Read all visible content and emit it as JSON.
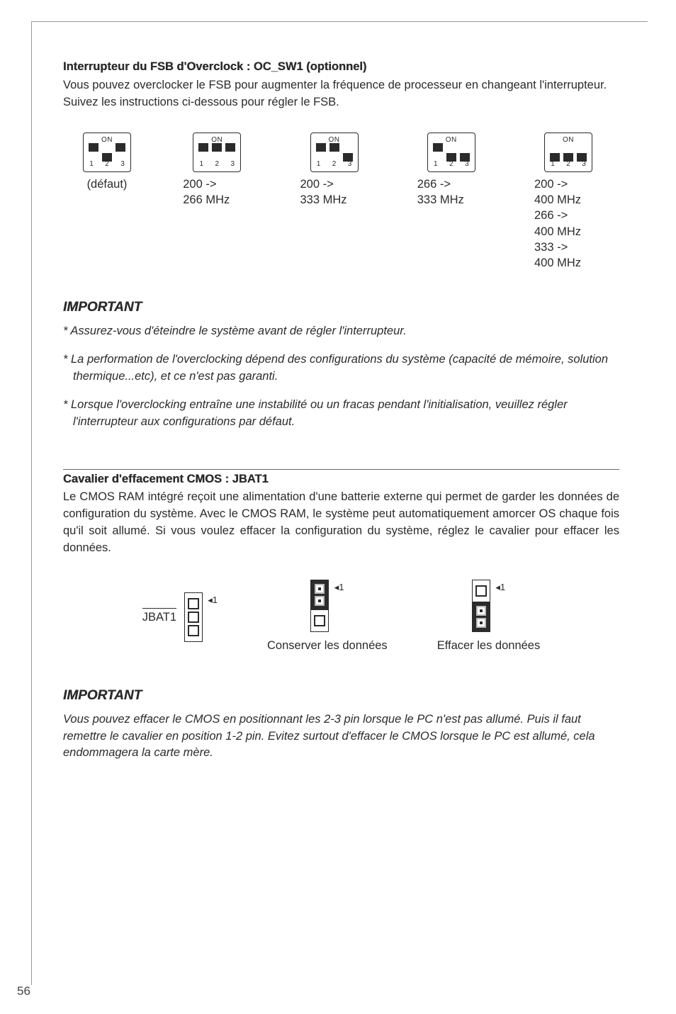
{
  "section1": {
    "heading": "Interrupteur du FSB d'Overclock : OC_SW1 (optionnel)",
    "intro": "Vous pouvez overclocker le FSB pour augmenter la fréquence de processeur en changeant l'interrupteur. Suivez les instructions ci-dessous pour régler le FSB."
  },
  "dip": {
    "on_label": "ON",
    "nums": [
      "1",
      "2",
      "3"
    ],
    "switches": [
      {
        "pattern": [
          "up",
          "down",
          "up"
        ],
        "label": "(défaut)",
        "freqs": []
      },
      {
        "pattern": [
          "up",
          "up",
          "up"
        ],
        "label": "",
        "freqs": [
          "200 ->",
          "266 MHz"
        ]
      },
      {
        "pattern": [
          "up",
          "up",
          "down"
        ],
        "label": "",
        "freqs": [
          "200 ->",
          "333 MHz"
        ]
      },
      {
        "pattern": [
          "up",
          "down",
          "down"
        ],
        "label": "",
        "freqs": [
          "266 ->",
          "333 MHz"
        ]
      },
      {
        "pattern": [
          "down",
          "down",
          "down"
        ],
        "label": "",
        "freqs": [
          "200 ->",
          "400 MHz",
          "266 ->",
          "400 MHz",
          "333 ->",
          "400 MHz"
        ]
      }
    ]
  },
  "important1": {
    "title": "IMPORTANT",
    "items": [
      "*  Assurez-vous d'éteindre le système avant de régler l'interrupteur.",
      "* La performation de l'overclocking dépend des configurations du système (capacité de mémoire, solution thermique...etc), et ce n'est pas garanti.",
      "*  Lorsque l'overclocking entraîne une instabilité ou un fracas pendant l'initialisation, veuillez régler l'interrupteur aux configurations par défaut."
    ]
  },
  "section2": {
    "heading": "Cavalier d'effacement CMOS : JBAT1",
    "intro": "Le CMOS RAM intégré reçoit une alimentation d'une batterie externe qui permet de garder les données de configuration du système. Avec le CMOS RAM, le système peut automatiquement amorcer OS chaque fois qu'il soit allumé. Si vous voulez effacer la configuration du système, réglez le cavalier pour effacer les données."
  },
  "jumper": {
    "label": "JBAT1",
    "pin1": "1",
    "keep": "Conserver les données",
    "clear": "Effacer les données"
  },
  "important2": {
    "title": "IMPORTANT",
    "text": "Vous pouvez effacer le CMOS en positionnant les 2-3 pin lorsque le PC n'est pas allumé. Puis il faut remettre le cavalier en position 1-2 pin. Evitez surtout d'effacer le CMOS lorsque le PC est allumé, cela endommagera la carte mère."
  },
  "page_number": "56"
}
